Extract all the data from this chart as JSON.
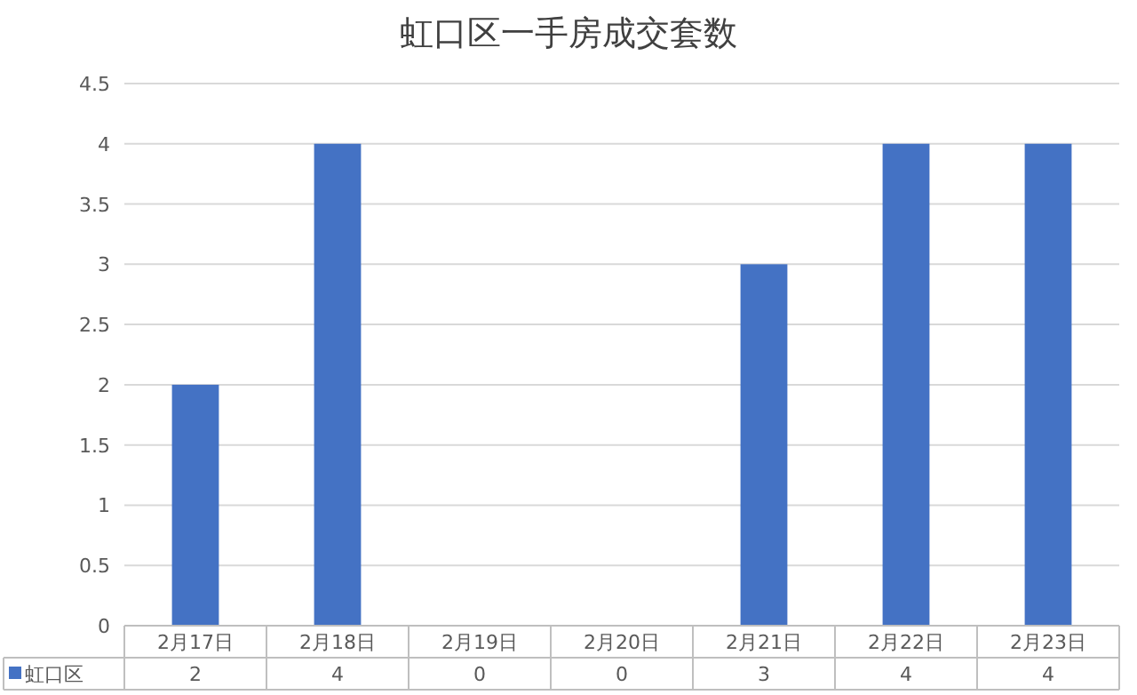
{
  "chart_data": {
    "type": "bar",
    "title": "虹口区一手房成交套数",
    "categories": [
      "2月17日",
      "2月18日",
      "2月19日",
      "2月20日",
      "2月21日",
      "2月22日",
      "2月23日"
    ],
    "series": [
      {
        "name": "虹口区",
        "color": "#4472c4",
        "values": [
          2,
          4,
          0,
          0,
          3,
          4,
          4
        ]
      }
    ],
    "ylim": [
      0,
      4.5
    ],
    "yticks": [
      0,
      0.5,
      1,
      1.5,
      2,
      2.5,
      3,
      3.5,
      4,
      4.5
    ],
    "grid": "y",
    "legend": "bottom left",
    "data_labels": true
  }
}
